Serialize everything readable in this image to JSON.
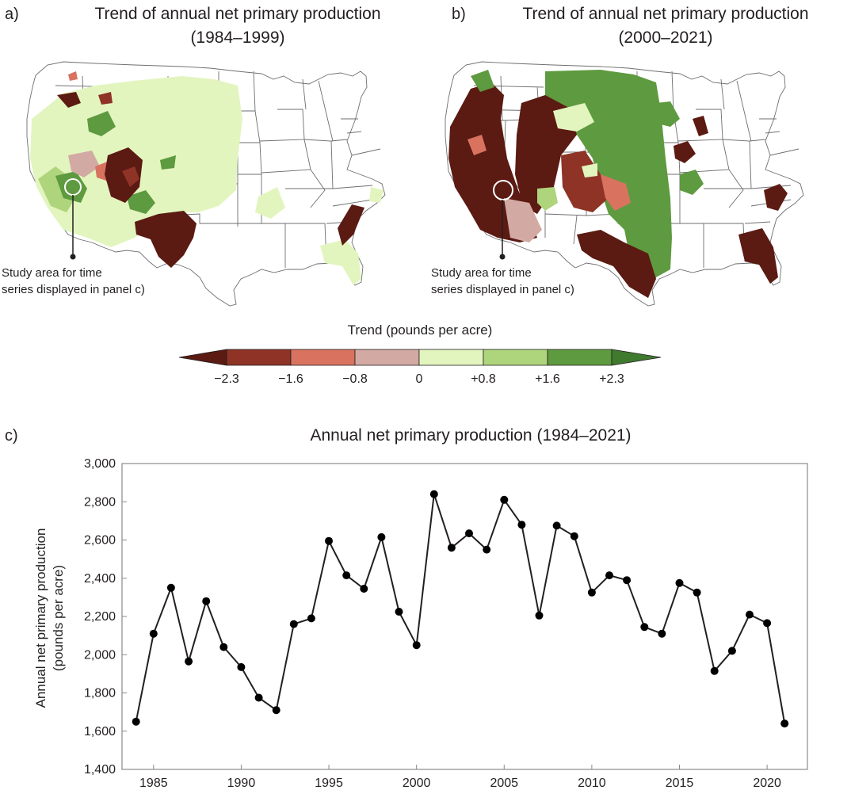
{
  "panel_a": {
    "letter": "a)",
    "title_line1": "Trend of annual net primary production",
    "title_line2": "(1984–1999)",
    "callout_line1": "Study area for time",
    "callout_line2": "series displayed in panel c)"
  },
  "panel_b": {
    "letter": "b)",
    "title_line1": "Trend of annual net primary production",
    "title_line2": "(2000–2021)",
    "callout_line1": "Study area for time",
    "callout_line2": "series displayed in panel c)"
  },
  "legend": {
    "title": "Trend (pounds per acre)",
    "ticks": [
      "−2.3",
      "−1.6",
      "−0.8",
      "0",
      "+0.8",
      "+1.6",
      "+2.3"
    ],
    "colors": [
      "#5b1a12",
      "#8e3325",
      "#d97360",
      "#d2aaa3",
      "#e3f5bf",
      "#aed47c",
      "#5e9a3f",
      "#3f7a2f"
    ]
  },
  "chart_data": {
    "type": "line",
    "panel_letter": "c)",
    "title": "Annual net primary production (1984–2021)",
    "ylabel_line1": "Annual net primary production",
    "ylabel_line2": "(pounds per acre)",
    "xlabel": "",
    "x": [
      1984,
      1985,
      1986,
      1987,
      1988,
      1989,
      1990,
      1991,
      1992,
      1993,
      1994,
      1995,
      1996,
      1997,
      1998,
      1999,
      2000,
      2001,
      2002,
      2003,
      2004,
      2005,
      2006,
      2007,
      2008,
      2009,
      2010,
      2011,
      2012,
      2013,
      2014,
      2015,
      2016,
      2017,
      2018,
      2019,
      2020,
      2021
    ],
    "y": [
      1650,
      2110,
      2350,
      1965,
      2280,
      2040,
      1935,
      1775,
      1710,
      2160,
      2190,
      2595,
      2415,
      2345,
      2615,
      2225,
      2050,
      2840,
      2560,
      2635,
      2550,
      2810,
      2680,
      2205,
      2675,
      2620,
      2325,
      2415,
      2390,
      2145,
      2110,
      2375,
      2325,
      1915,
      2020,
      2210,
      2165,
      1640
    ],
    "xlim": [
      1983.2,
      2022.3
    ],
    "ylim": [
      1400,
      3000
    ],
    "x_ticks": [
      1985,
      1990,
      1995,
      2000,
      2005,
      2010,
      2015,
      2020
    ],
    "x_tick_labels": [
      "1985",
      "1990",
      "1995",
      "2000",
      "2005",
      "2010",
      "2015",
      "2020"
    ],
    "y_ticks": [
      1400,
      1600,
      1800,
      2000,
      2200,
      2400,
      2600,
      2800,
      3000
    ],
    "y_tick_labels": [
      "1,400",
      "1,600",
      "1,800",
      "2,000",
      "2,200",
      "2,400",
      "2,600",
      "2,800",
      "3,000"
    ],
    "grid": false,
    "line_color": "#231f20",
    "marker_color": "#000000"
  }
}
